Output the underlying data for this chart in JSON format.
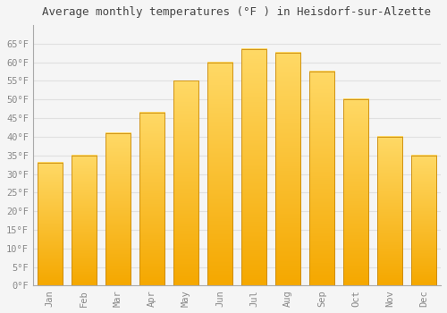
{
  "title": "Average monthly temperatures (°F ) in Heisdorf-sur-Alzette",
  "months": [
    "Jan",
    "Feb",
    "Mar",
    "Apr",
    "May",
    "Jun",
    "Jul",
    "Aug",
    "Sep",
    "Oct",
    "Nov",
    "Dec"
  ],
  "values": [
    33,
    35,
    41,
    46.5,
    55,
    60,
    63.5,
    62.5,
    57.5,
    50,
    40,
    35
  ],
  "bar_color_bottom": "#F5A800",
  "bar_color_top": "#FFD966",
  "bar_edge_color": "#C8880A",
  "background_color": "#F5F5F5",
  "grid_color": "#E0E0E0",
  "tick_label_color": "#888888",
  "title_color": "#444444",
  "spine_color": "#AAAAAA",
  "ylim": [
    0,
    70
  ],
  "yticks": [
    0,
    5,
    10,
    15,
    20,
    25,
    30,
    35,
    40,
    45,
    50,
    55,
    60,
    65
  ],
  "ytick_labels": [
    "0°F",
    "5°F",
    "10°F",
    "15°F",
    "20°F",
    "25°F",
    "30°F",
    "35°F",
    "40°F",
    "45°F",
    "50°F",
    "55°F",
    "60°F",
    "65°F"
  ],
  "title_fontsize": 9,
  "tick_fontsize": 7.5,
  "figsize": [
    5.0,
    3.5
  ],
  "dpi": 100,
  "bar_width": 0.75
}
